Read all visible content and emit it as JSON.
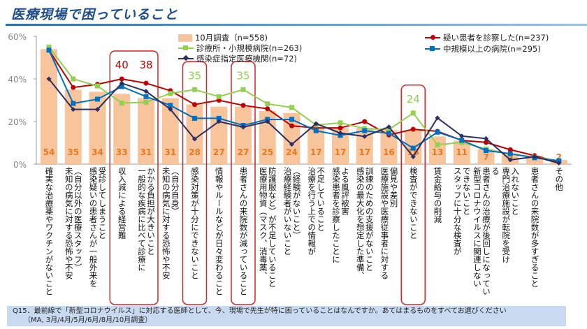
{
  "title": "医療現場で困っていること",
  "footer": {
    "question": "Q15．最前線で「新型コロナウイルス」に対応する医師として、今、現場で先生が特に困っていることはなんですか。あてはまるものをすべてお選びください",
    "note": "（MA, 3月/4月/5月/6月/8月/10月調査）"
  },
  "chart_data": {
    "type": "bar+line",
    "ylim": [
      0,
      60
    ],
    "yticks": [
      "0%",
      "20%",
      "40%",
      "60%"
    ],
    "legend_placement": "top",
    "categories": [
      [
        "確実な治療薬やワクチンがないこと"
      ],
      [
        "未知の病気に対する恐怖や不安",
        "（自分以外の医療スタッフ）"
      ],
      [
        "感染疑いの患者さんが一般外来を",
        "受診してしまうこと"
      ],
      [
        "収入減による経営難"
      ],
      [
        "一般的な疾病に比べて診療に",
        "かかる負担が大きいこと"
      ],
      [
        "未知の病気に対する恐怖や不安",
        "（自分自身）"
      ],
      [
        "感染対策が十分にできないこと"
      ],
      [
        "情報やルールなどが日々変わること"
      ],
      [
        "患者さんの来院数が減っていること"
      ],
      [
        "医療用物資（マスク、消毒薬、",
        "防護服など）が不足していること"
      ],
      [
        "治療経験者がいないこと",
        "（経験がないこと）"
      ],
      [
        "治療を行う上での情報が",
        "不足していること"
      ],
      [
        "感染患者を診察したことに",
        "よる風評被害"
      ],
      [
        "感染の最大化を想定した準備、",
        "訓練のための支援がないこと"
      ],
      [
        "医療施設や医療従事者に対する",
        "偏見や差別"
      ],
      [
        "検査ができないこと"
      ],
      [
        "賃金給与の削減"
      ],
      [
        "スタッフに十分な検査が",
        "できないこと"
      ],
      [
        "新型コロナウイルスに関連しない",
        "患者さんの治療が後回しになってい",
        "る"
      ],
      [
        "専門治療施設が転院を受け",
        "入れないこと"
      ],
      [
        "患者さんの来院数が多すぎること"
      ],
      [
        "その他"
      ]
    ],
    "bars": {
      "name": "10月調査（n=558)",
      "color": "#f8c49c",
      "label_color": "#e8781e",
      "values": [
        54,
        35,
        34,
        33,
        31,
        31,
        28,
        27,
        27,
        25,
        24,
        17,
        17,
        17,
        16,
        16,
        13,
        11,
        7,
        5,
        4,
        2
      ]
    },
    "series": [
      {
        "name": "疑い患者を診察した(n=237)",
        "color": "#c00000",
        "marker": "circle",
        "values": [
          53.5,
          36,
          37.5,
          40,
          38,
          34.5,
          28,
          30,
          27.6,
          26,
          18,
          17,
          17,
          20,
          13.7,
          16.4,
          15.4,
          11.2,
          10.2,
          6.8,
          4,
          1
        ]
      },
      {
        "name": "診療所・小規模病院(n=263)",
        "color": "#92d050",
        "marker": "square",
        "values": [
          55,
          40,
          36.7,
          28.7,
          29,
          33.2,
          35,
          31.7,
          35,
          28.3,
          26.6,
          18.4,
          19.4,
          16.7,
          16.2,
          24,
          9.1,
          10.2,
          7.1,
          4.7,
          3.3,
          1.6
        ]
      },
      {
        "name": "中規模以上の病院(n=295)",
        "color": "#0070c0",
        "marker": "square",
        "values": [
          53.5,
          28.5,
          30.5,
          36.4,
          31.7,
          27.6,
          21.5,
          21.5,
          18.2,
          21,
          21,
          15.7,
          13.5,
          15.7,
          14.5,
          7.5,
          15,
          11.2,
          6.4,
          4.9,
          3,
          1.6
        ]
      },
      {
        "name": "感染症指定医療機関(n=72)",
        "color": "#2e2e5e",
        "marker": "diamond",
        "values": [
          40,
          25.7,
          25.7,
          38,
          34.2,
          25.8,
          11.8,
          20,
          17.4,
          20,
          9.3,
          19,
          14.6,
          13,
          17.5,
          3.5,
          21.7,
          13.2,
          12,
          2,
          3.5,
          0.5
        ]
      }
    ],
    "highlights": [
      {
        "categories": [
          3,
          4
        ],
        "labels": [
          "40",
          "38"
        ],
        "label_color": "#c00000"
      },
      {
        "categories": [
          6
        ],
        "labels": [
          "35"
        ],
        "label_color": "#92d050"
      },
      {
        "categories": [
          8
        ],
        "labels": [
          "35"
        ],
        "label_color": "#92d050"
      },
      {
        "categories": [
          15
        ],
        "labels": [
          "24"
        ],
        "label_color": "#92d050"
      }
    ],
    "highlight_color": "#e02020"
  }
}
